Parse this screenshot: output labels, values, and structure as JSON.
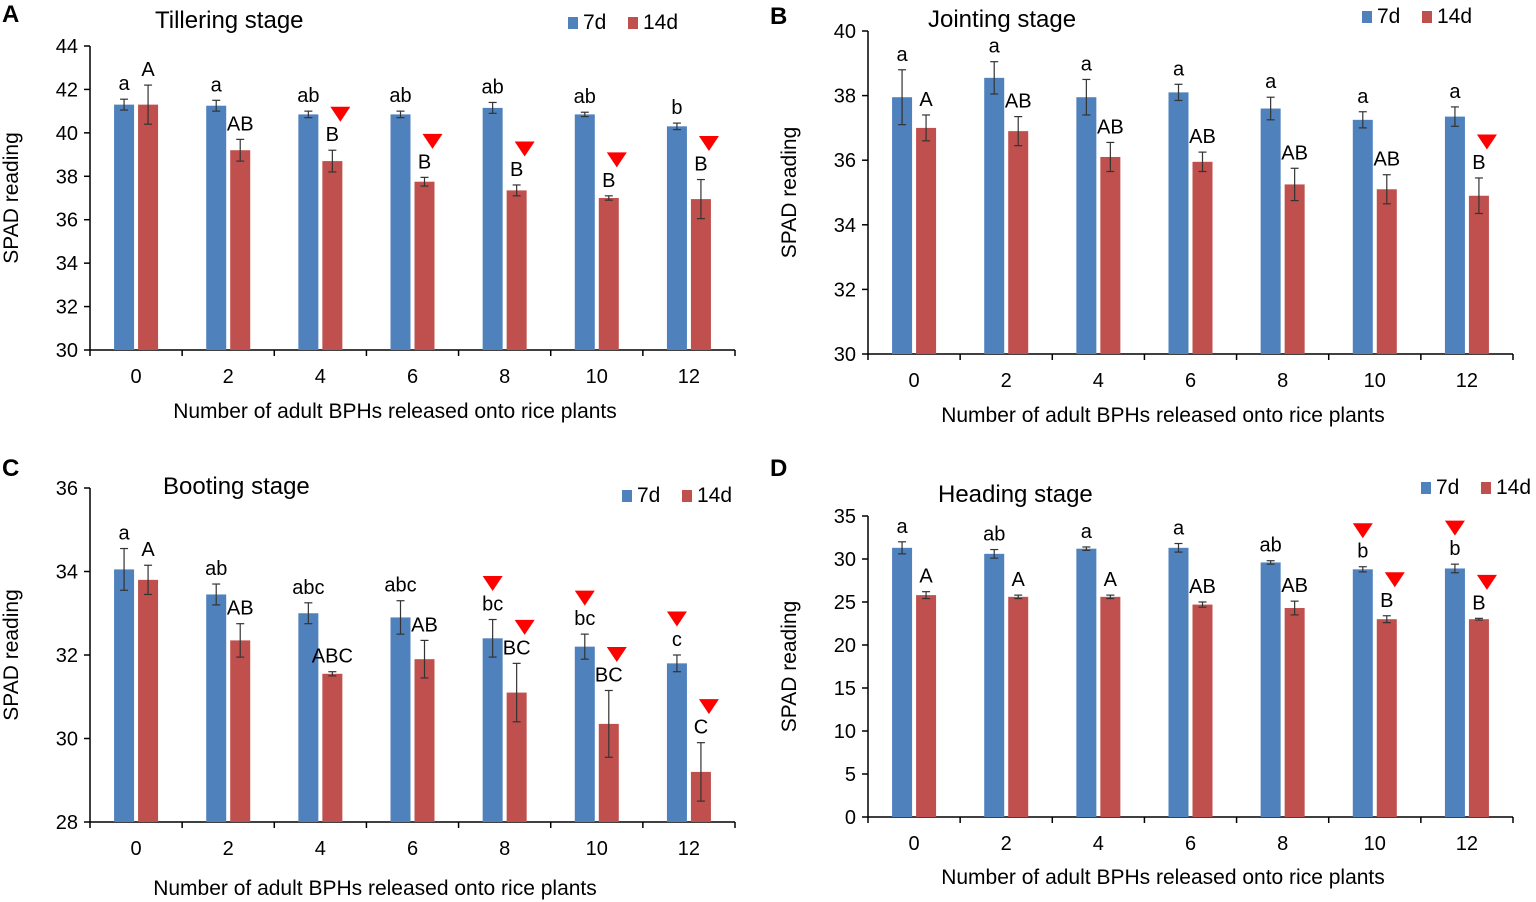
{
  "chart_data": [
    {
      "panel_label": "A",
      "type": "bar",
      "title": "Tillering stage",
      "xlabel": "Number of adult BPHs released onto rice plants",
      "ylabel": "SPAD reading",
      "categories": [
        "0",
        "2",
        "4",
        "6",
        "8",
        "10",
        "12"
      ],
      "ylim": [
        30,
        44
      ],
      "yticks": [
        30,
        32,
        34,
        36,
        38,
        40,
        42,
        44
      ],
      "legend_position": "top-right",
      "series": [
        {
          "name": "7d",
          "color": "#4f81bd",
          "values": [
            41.3,
            41.25,
            40.85,
            40.85,
            41.15,
            40.85,
            40.3
          ],
          "errors": [
            0.25,
            0.25,
            0.15,
            0.15,
            0.25,
            0.1,
            0.15
          ],
          "letters": [
            "a",
            "a",
            "ab",
            "ab",
            "ab",
            "ab",
            "b"
          ],
          "markers": [
            false,
            false,
            false,
            false,
            false,
            false,
            false
          ]
        },
        {
          "name": "14d",
          "color": "#c0504d",
          "values": [
            41.3,
            39.2,
            38.7,
            37.75,
            37.35,
            37.0,
            36.95
          ],
          "errors": [
            0.9,
            0.5,
            0.5,
            0.2,
            0.25,
            0.1,
            0.9
          ],
          "letters": [
            "A",
            "AB",
            "B",
            "B",
            "B",
            "B",
            "B"
          ],
          "markers": [
            false,
            false,
            true,
            true,
            true,
            true,
            true
          ]
        }
      ]
    },
    {
      "panel_label": "B",
      "type": "bar",
      "title": "Jointing stage",
      "xlabel": "Number of adult BPHs released onto rice plants",
      "ylabel": "SPAD reading",
      "categories": [
        "0",
        "2",
        "4",
        "6",
        "8",
        "10",
        "12"
      ],
      "ylim": [
        30,
        40
      ],
      "yticks": [
        30,
        32,
        34,
        36,
        38,
        40
      ],
      "legend_position": "top-right",
      "series": [
        {
          "name": "7d",
          "color": "#4f81bd",
          "values": [
            37.95,
            38.55,
            37.95,
            38.1,
            37.6,
            37.25,
            37.35
          ],
          "errors": [
            0.85,
            0.5,
            0.55,
            0.25,
            0.35,
            0.25,
            0.3
          ],
          "letters": [
            "a",
            "a",
            "a",
            "a",
            "a",
            "a",
            "a"
          ],
          "markers": [
            false,
            false,
            false,
            false,
            false,
            false,
            false
          ]
        },
        {
          "name": "14d",
          "color": "#c0504d",
          "values": [
            37.0,
            36.9,
            36.1,
            35.95,
            35.25,
            35.1,
            34.9
          ],
          "errors": [
            0.4,
            0.45,
            0.45,
            0.3,
            0.5,
            0.45,
            0.55
          ],
          "letters": [
            "A",
            "AB",
            "AB",
            "AB",
            "AB",
            "AB",
            "B"
          ],
          "markers": [
            false,
            false,
            false,
            false,
            false,
            false,
            true
          ]
        }
      ]
    },
    {
      "panel_label": "C",
      "type": "bar",
      "title": "Booting stage",
      "xlabel": "Number of adult BPHs released onto rice plants",
      "ylabel": "SPAD reading",
      "categories": [
        "0",
        "2",
        "4",
        "6",
        "8",
        "10",
        "12"
      ],
      "ylim": [
        28,
        36
      ],
      "yticks": [
        28,
        30,
        32,
        34,
        36
      ],
      "legend_position": "top-right",
      "series": [
        {
          "name": "7d",
          "color": "#4f81bd",
          "values": [
            34.05,
            33.45,
            33.0,
            32.9,
            32.4,
            32.2,
            31.8
          ],
          "errors": [
            0.5,
            0.25,
            0.25,
            0.4,
            0.45,
            0.3,
            0.2
          ],
          "letters": [
            "a",
            "ab",
            "abc",
            "abc",
            "bc",
            "bc",
            "c"
          ],
          "markers": [
            false,
            false,
            false,
            false,
            true,
            true,
            true
          ]
        },
        {
          "name": "14d",
          "color": "#c0504d",
          "values": [
            33.8,
            32.35,
            31.55,
            31.9,
            31.1,
            30.35,
            29.2
          ],
          "errors": [
            0.35,
            0.4,
            0.05,
            0.45,
            0.7,
            0.8,
            0.7
          ],
          "letters": [
            "A",
            "AB",
            "ABC",
            "AB",
            "BC",
            "BC",
            "C"
          ],
          "markers": [
            false,
            false,
            false,
            false,
            true,
            true,
            true
          ]
        }
      ]
    },
    {
      "panel_label": "D",
      "type": "bar",
      "title": "Heading stage",
      "xlabel": "Number of adult BPHs released onto rice plants",
      "ylabel": "SPAD reading",
      "categories": [
        "0",
        "2",
        "4",
        "6",
        "8",
        "10",
        "12"
      ],
      "ylim": [
        0,
        35
      ],
      "yticks": [
        0,
        5,
        10,
        15,
        20,
        25,
        30,
        35
      ],
      "legend_position": "top-right",
      "series": [
        {
          "name": "7d",
          "color": "#4f81bd",
          "values": [
            31.3,
            30.6,
            31.2,
            31.3,
            29.6,
            28.8,
            28.9
          ],
          "errors": [
            0.7,
            0.5,
            0.2,
            0.5,
            0.2,
            0.3,
            0.5
          ],
          "letters": [
            "a",
            "ab",
            "a",
            "a",
            "ab",
            "b",
            "b"
          ],
          "markers": [
            false,
            false,
            false,
            false,
            false,
            true,
            true
          ]
        },
        {
          "name": "14d",
          "color": "#c0504d",
          "values": [
            25.8,
            25.6,
            25.6,
            24.7,
            24.3,
            23.0,
            23.0
          ],
          "errors": [
            0.4,
            0.2,
            0.2,
            0.3,
            0.8,
            0.4,
            0.1
          ],
          "letters": [
            "A",
            "A",
            "A",
            "AB",
            "AB",
            "B",
            "B"
          ],
          "markers": [
            false,
            false,
            false,
            false,
            false,
            true,
            true
          ]
        }
      ]
    }
  ]
}
